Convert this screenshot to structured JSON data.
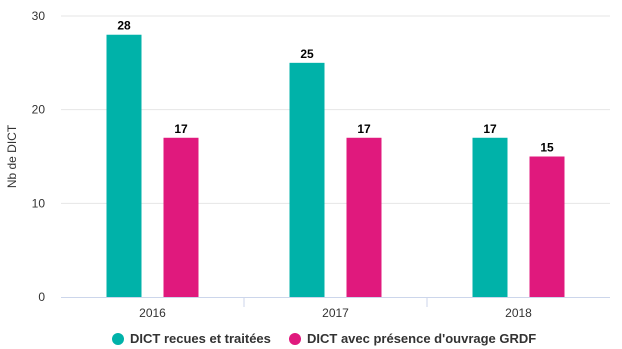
{
  "chart_data": {
    "type": "bar",
    "categories": [
      "2016",
      "2017",
      "2018"
    ],
    "series": [
      {
        "name": "DICT recues et traitées",
        "values": [
          28,
          25,
          17
        ],
        "color": "#00b2a9"
      },
      {
        "name": "DICT avec présence d'ouvrage GRDF",
        "values": [
          17,
          17,
          15
        ],
        "color": "#e0197d"
      }
    ],
    "title": "",
    "xlabel": "",
    "ylabel": "Nb de DICT",
    "ylim": [
      0,
      30
    ],
    "yticks": [
      0,
      10,
      20,
      30
    ],
    "grid": true,
    "legend": "bottom",
    "data_labels": true
  }
}
